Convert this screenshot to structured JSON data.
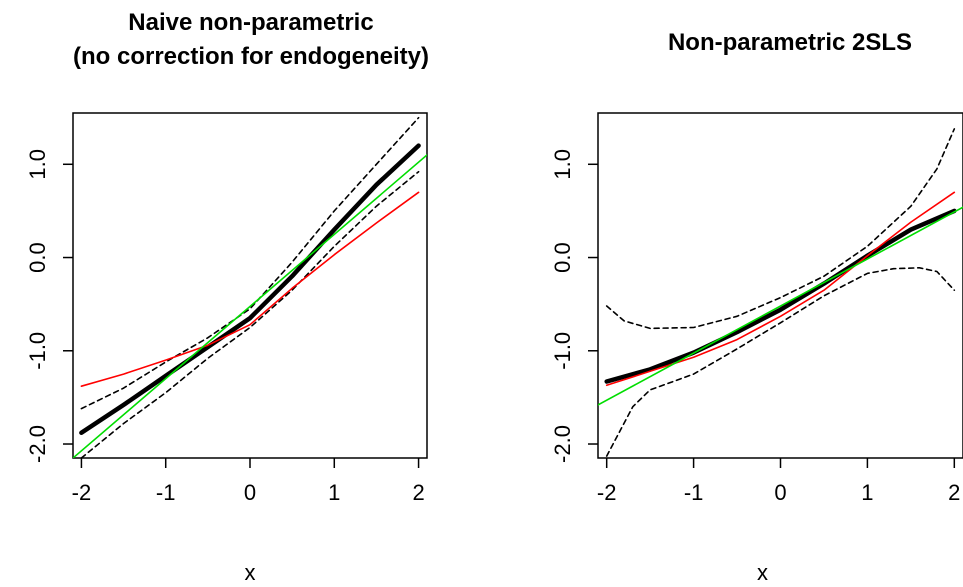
{
  "chart_data": [
    {
      "type": "line",
      "title": [
        "Naive non-parametric",
        "(no correction for endogeneity)"
      ],
      "xlabel": "x",
      "ylabel": "",
      "xlim": [
        -2.1,
        2.1
      ],
      "ylim": [
        -2.15,
        1.55
      ],
      "xticks": [
        "-2",
        "-1",
        "0",
        "1",
        "2"
      ],
      "yticks": [
        "-2.0",
        "-1.0",
        "0.0",
        "1.0"
      ],
      "series": [
        {
          "role": "estimate",
          "color": "#000000",
          "style": "solid-thick",
          "points": [
            [
              -2,
              -1.88
            ],
            [
              -1.5,
              -1.58
            ],
            [
              -1,
              -1.27
            ],
            [
              -0.5,
              -0.96
            ],
            [
              0,
              -0.65
            ],
            [
              0.5,
              -0.2
            ],
            [
              1,
              0.3
            ],
            [
              1.5,
              0.78
            ],
            [
              2,
              1.2
            ]
          ]
        },
        {
          "role": "upper-band",
          "color": "#000000",
          "style": "dashed",
          "points": [
            [
              -2,
              -1.62
            ],
            [
              -1.5,
              -1.4
            ],
            [
              -1,
              -1.12
            ],
            [
              -0.5,
              -0.86
            ],
            [
              0,
              -0.55
            ],
            [
              0.5,
              -0.05
            ],
            [
              1,
              0.5
            ],
            [
              1.5,
              1.0
            ],
            [
              2,
              1.5
            ]
          ]
        },
        {
          "role": "lower-band",
          "color": "#000000",
          "style": "dashed",
          "points": [
            [
              -2,
              -2.15
            ],
            [
              -1.5,
              -1.78
            ],
            [
              -1,
              -1.45
            ],
            [
              -0.5,
              -1.08
            ],
            [
              0,
              -0.75
            ],
            [
              0.5,
              -0.35
            ],
            [
              1,
              0.12
            ],
            [
              1.5,
              0.55
            ],
            [
              2,
              0.92
            ]
          ]
        },
        {
          "role": "red-curve",
          "color": "#ff0000",
          "style": "solid",
          "points": [
            [
              -2,
              -1.38
            ],
            [
              -1.5,
              -1.25
            ],
            [
              -1,
              -1.1
            ],
            [
              -0.5,
              -0.94
            ],
            [
              0,
              -0.72
            ],
            [
              0.5,
              -0.33
            ],
            [
              1,
              0.03
            ],
            [
              1.5,
              0.37
            ],
            [
              2,
              0.7
            ]
          ]
        },
        {
          "role": "green-line",
          "color": "#00dd00",
          "style": "solid",
          "points": [
            [
              -2.1,
              -2.15
            ],
            [
              2.1,
              1.1
            ]
          ]
        }
      ]
    },
    {
      "type": "line",
      "title": [
        "Non-parametric 2SLS"
      ],
      "xlabel": "x",
      "ylabel": "",
      "xlim": [
        -2.1,
        2.1
      ],
      "ylim": [
        -2.15,
        1.55
      ],
      "xticks": [
        "-2",
        "-1",
        "0",
        "1",
        "2"
      ],
      "yticks": [
        "-2.0",
        "-1.0",
        "0.0",
        "1.0"
      ],
      "series": [
        {
          "role": "estimate",
          "color": "#000000",
          "style": "solid-thick",
          "points": [
            [
              -2,
              -1.33
            ],
            [
              -1.5,
              -1.2
            ],
            [
              -1,
              -1.02
            ],
            [
              -0.5,
              -0.8
            ],
            [
              0,
              -0.56
            ],
            [
              0.5,
              -0.28
            ],
            [
              1,
              0.02
            ],
            [
              1.5,
              0.3
            ],
            [
              2,
              0.5
            ]
          ]
        },
        {
          "role": "upper-band",
          "color": "#000000",
          "style": "dashed",
          "points": [
            [
              -2,
              -0.52
            ],
            [
              -1.8,
              -0.68
            ],
            [
              -1.5,
              -0.76
            ],
            [
              -1,
              -0.75
            ],
            [
              -0.5,
              -0.63
            ],
            [
              0,
              -0.43
            ],
            [
              0.5,
              -0.2
            ],
            [
              1,
              0.12
            ],
            [
              1.5,
              0.55
            ],
            [
              1.8,
              0.95
            ],
            [
              2,
              1.38
            ]
          ]
        },
        {
          "role": "lower-band",
          "color": "#000000",
          "style": "dashed",
          "points": [
            [
              -2,
              -2.13
            ],
            [
              -1.7,
              -1.6
            ],
            [
              -1.5,
              -1.42
            ],
            [
              -1,
              -1.25
            ],
            [
              -0.5,
              -0.98
            ],
            [
              0,
              -0.7
            ],
            [
              0.5,
              -0.41
            ],
            [
              1,
              -0.17
            ],
            [
              1.3,
              -0.12
            ],
            [
              1.6,
              -0.11
            ],
            [
              1.8,
              -0.15
            ],
            [
              2,
              -0.35
            ]
          ]
        },
        {
          "role": "red-curve",
          "color": "#ff0000",
          "style": "solid",
          "points": [
            [
              -2,
              -1.37
            ],
            [
              -1.5,
              -1.22
            ],
            [
              -1,
              -1.07
            ],
            [
              -0.5,
              -0.88
            ],
            [
              0,
              -0.63
            ],
            [
              0.5,
              -0.35
            ],
            [
              1,
              0.02
            ],
            [
              1.5,
              0.38
            ],
            [
              2,
              0.7
            ]
          ]
        },
        {
          "role": "green-line",
          "color": "#00dd00",
          "style": "solid",
          "points": [
            [
              -2.1,
              -1.58
            ],
            [
              2.1,
              0.54
            ]
          ]
        }
      ]
    }
  ]
}
